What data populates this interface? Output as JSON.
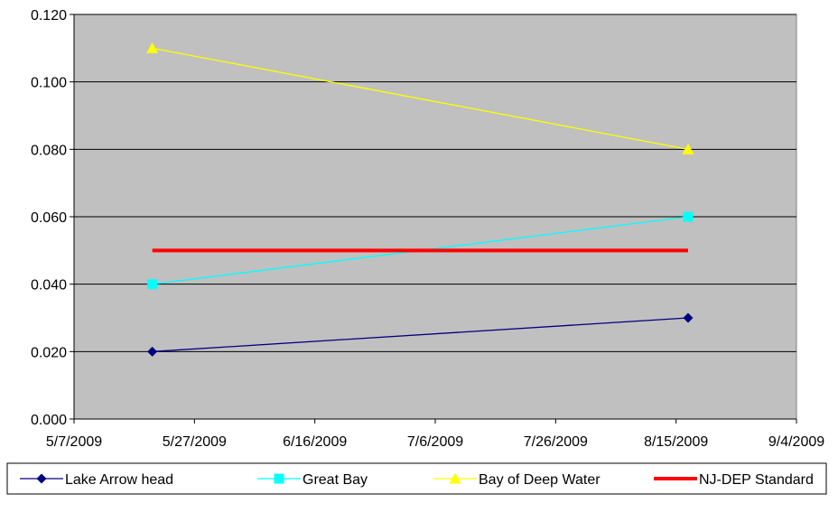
{
  "chart_data": {
    "type": "line",
    "title": "",
    "xlabel": "",
    "ylabel": "",
    "x_axis_type": "date",
    "xlim": [
      "5/7/2009",
      "9/4/2009"
    ],
    "ylim": [
      0,
      0.12
    ],
    "x_ticks": [
      "5/7/2009",
      "5/27/2009",
      "6/16/2009",
      "7/6/2009",
      "7/26/2009",
      "8/15/2009",
      "9/4/2009"
    ],
    "y_ticks": [
      "0.000",
      "0.020",
      "0.040",
      "0.060",
      "0.080",
      "0.100",
      "0.120"
    ],
    "grid": "horizontal",
    "plot_background": "#c0c0c0",
    "legend_position": "bottom",
    "series": [
      {
        "name": "Lake Arrow head",
        "color": "#000080",
        "marker": "diamond",
        "x": [
          "5/20/2009",
          "8/17/2009"
        ],
        "y": [
          0.02,
          0.03
        ]
      },
      {
        "name": "Great Bay",
        "color": "#00ffff",
        "marker": "square",
        "x": [
          "5/20/2009",
          "8/17/2009"
        ],
        "y": [
          0.04,
          0.06
        ]
      },
      {
        "name": "Bay of Deep Water",
        "color": "#ffff00",
        "marker": "triangle",
        "x": [
          "5/20/2009",
          "8/17/2009"
        ],
        "y": [
          0.11,
          0.08
        ]
      },
      {
        "name": "NJ-DEP Standard",
        "color": "#ff0000",
        "marker": "none",
        "x": [
          "5/20/2009",
          "8/17/2009"
        ],
        "y": [
          0.05,
          0.05
        ]
      }
    ]
  }
}
